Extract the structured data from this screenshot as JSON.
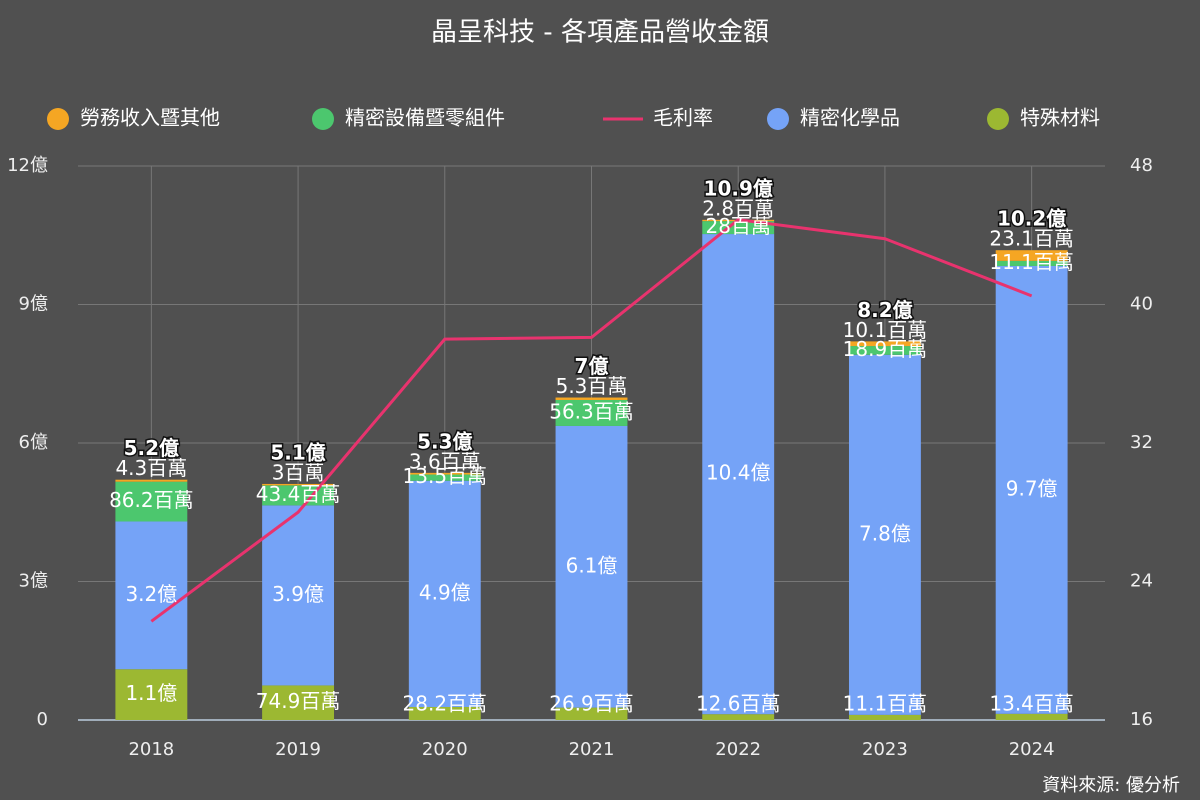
{
  "chart_data": {
    "type": "bar",
    "title": "晶呈科技 - 各項產品營收金額",
    "source": "資料來源: 優分析",
    "categories": [
      "2018",
      "2019",
      "2020",
      "2021",
      "2022",
      "2023",
      "2024"
    ],
    "ylim": [
      0,
      12
    ],
    "yticks": [
      0,
      {
        "value": 3,
        "label": "3億"
      },
      {
        "value": 6,
        "label": "6億"
      },
      {
        "value": 9,
        "label": "9億"
      },
      {
        "value": 12,
        "label": "12億"
      }
    ],
    "y2lim": [
      16,
      48
    ],
    "y2ticks": [
      16,
      24,
      32,
      40,
      48
    ],
    "grid": true,
    "legend": "top",
    "series": [
      {
        "name": "勞務收入暨其他",
        "type": "bar",
        "color": "#f5a623",
        "values": [
          0.043,
          0.03,
          0.036,
          0.053,
          0.028,
          0.101,
          0.231
        ],
        "value_labels": [
          "4.3百萬",
          "3百萬",
          "3.6百萬",
          "5.3百萬",
          "2.8百萬",
          "10.1百萬",
          "23.1百萬"
        ]
      },
      {
        "name": "精密設備暨零組件",
        "type": "bar",
        "color": "#4cc76e",
        "values": [
          0.862,
          0.434,
          0.135,
          0.563,
          0.28,
          0.189,
          0.111
        ],
        "value_labels": [
          "86.2百萬",
          "43.4百萬",
          "13.5百萬",
          "56.3百萬",
          "28百萬",
          "18.9百萬",
          "11.1百萬"
        ]
      },
      {
        "name": "毛利率",
        "type": "line",
        "axis": "y2",
        "color": "#e8336e",
        "values": [
          21.7,
          28.0,
          38.0,
          38.1,
          44.9,
          43.8,
          40.5
        ]
      },
      {
        "name": "精密化學品",
        "type": "bar",
        "color": "#75a3f7",
        "values": [
          3.2,
          3.9,
          4.9,
          6.1,
          10.4,
          7.8,
          9.7
        ],
        "value_labels": [
          "3.2億",
          "3.9億",
          "4.9億",
          "6.1億",
          "10.4億",
          "7.8億",
          "9.7億"
        ]
      },
      {
        "name": "特殊材料",
        "type": "bar",
        "color": "#9cb832",
        "values": [
          1.1,
          0.749,
          0.282,
          0.269,
          0.126,
          0.111,
          0.134
        ],
        "value_labels": [
          "1.1億",
          "74.9百萬",
          "28.2百萬",
          "26.9百萬",
          "12.6百萬",
          "11.1百萬",
          "13.4百萬"
        ]
      }
    ],
    "totals": {
      "values": [
        5.2,
        5.1,
        5.3,
        7,
        10.9,
        8.2,
        10.2
      ],
      "value_labels": [
        "5.2億",
        "5.1億",
        "5.3億",
        "7億",
        "10.9億",
        "8.2億",
        "10.2億"
      ]
    }
  }
}
